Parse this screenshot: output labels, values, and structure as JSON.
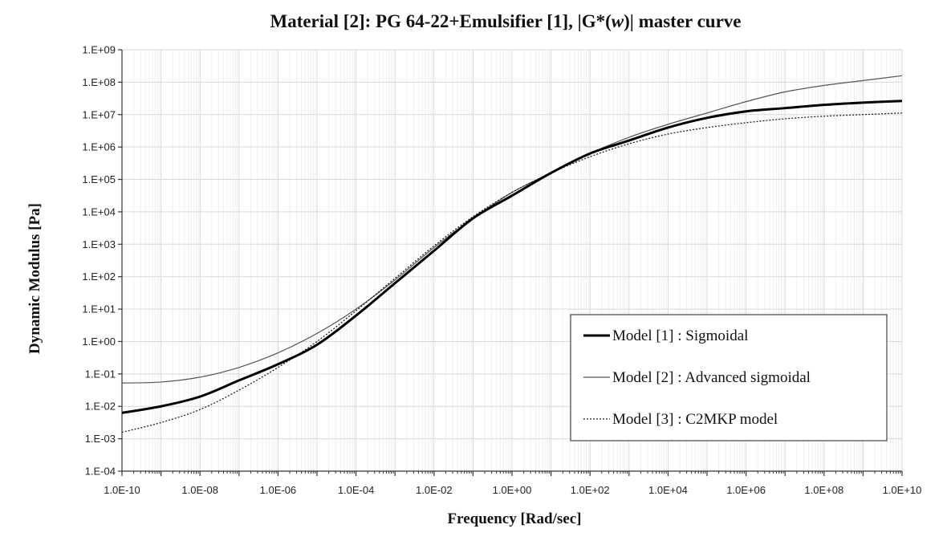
{
  "chart_data": {
    "type": "line",
    "title_prefix": "Material [2]: PG 64-22+Emulsifier [1], |G*(",
    "title_italic": "w",
    "title_suffix": ")| master curve",
    "xlabel": "Frequency [Rad/sec]",
    "ylabel": "Dynamic Modulus [Pa]",
    "xscale": "log",
    "yscale": "log",
    "xlim_exp": [
      -10,
      10
    ],
    "ylim_exp": [
      -4,
      9
    ],
    "x_ticks": [
      "1.0E-10",
      "1.0E-08",
      "1.0E-06",
      "1.0E-04",
      "1.0E-02",
      "1.0E+00",
      "1.0E+02",
      "1.0E+04",
      "1.0E+06",
      "1.0E+08",
      "1.0E+10"
    ],
    "y_ticks": [
      "1.E-04",
      "1.E-03",
      "1.E-02",
      "1.E-01",
      "1.E+00",
      "1.E+01",
      "1.E+02",
      "1.E+03",
      "1.E+04",
      "1.E+05",
      "1.E+06",
      "1.E+07",
      "1.E+08",
      "1.E+09"
    ],
    "grid": true,
    "legend_position": "bottom-right",
    "series": [
      {
        "name": "Model [1] : Sigmoidal",
        "style": "thick-solid",
        "color": "#000000",
        "log_x": [
          -10,
          -9,
          -8,
          -7,
          -6,
          -5,
          -4,
          -3,
          -2,
          -1,
          0,
          1,
          2,
          3,
          4,
          5,
          6,
          7,
          8,
          9,
          10
        ],
        "log_y": [
          -2.2,
          -2.0,
          -1.7,
          -1.2,
          -0.7,
          -0.1,
          0.8,
          1.8,
          2.8,
          3.8,
          4.5,
          5.2,
          5.8,
          6.2,
          6.6,
          6.9,
          7.1,
          7.2,
          7.3,
          7.37,
          7.42
        ]
      },
      {
        "name": "Model [2] : Advanced sigmoidal",
        "style": "thin-solid",
        "color": "#555555",
        "log_x": [
          -10,
          -9,
          -8,
          -7,
          -6,
          -5,
          -4,
          -3,
          -2,
          -1,
          0,
          1,
          2,
          3,
          4,
          5,
          6,
          7,
          8,
          9,
          10
        ],
        "log_y": [
          -1.28,
          -1.25,
          -1.1,
          -0.8,
          -0.35,
          0.25,
          1.0,
          1.9,
          2.9,
          3.8,
          4.6,
          5.2,
          5.8,
          6.3,
          6.7,
          7.05,
          7.4,
          7.7,
          7.9,
          8.05,
          8.2
        ]
      },
      {
        "name": "Model [3] : C2MKP model",
        "style": "dotted",
        "color": "#222222",
        "log_x": [
          -10,
          -9,
          -8,
          -7,
          -6,
          -5,
          -4,
          -3,
          -2,
          -1,
          0,
          1,
          2,
          3,
          4,
          5,
          6,
          7,
          8,
          9,
          10
        ],
        "log_y": [
          -2.8,
          -2.5,
          -2.1,
          -1.5,
          -0.8,
          0.0,
          0.95,
          1.95,
          2.95,
          3.85,
          4.6,
          5.2,
          5.7,
          6.1,
          6.4,
          6.6,
          6.75,
          6.87,
          6.95,
          7.0,
          7.05
        ]
      }
    ]
  }
}
